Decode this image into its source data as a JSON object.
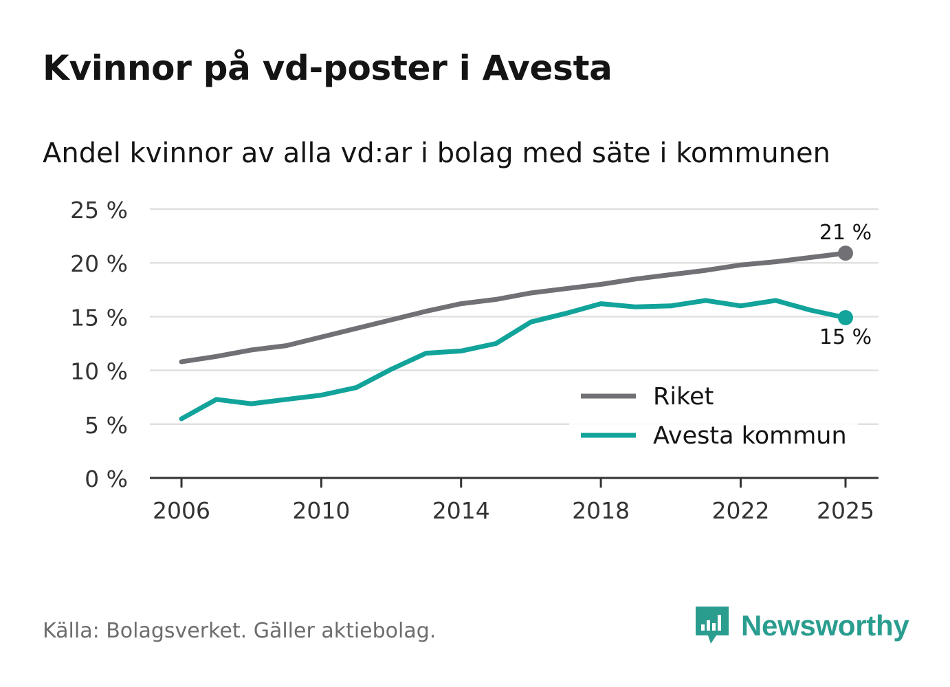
{
  "title": "Kvinnor på vd-poster i Avesta",
  "subtitle": "Andel kvinnor av alla vd:ar i bolag med säte i kommunen",
  "footer": "Källa: Bolagsverket. Gäller aktiebolag.",
  "brand": "Newsworthy",
  "colors": {
    "riket": "#717075",
    "avesta": "#12a39a",
    "grid": "#e0e0e0",
    "axis": "#333333",
    "brand": "#2a9d8f"
  },
  "chart_data": {
    "type": "line",
    "x": [
      2006,
      2007,
      2008,
      2009,
      2010,
      2011,
      2012,
      2013,
      2014,
      2015,
      2016,
      2017,
      2018,
      2019,
      2020,
      2021,
      2022,
      2023,
      2024,
      2025
    ],
    "series": [
      {
        "name": "Riket",
        "color": "#717075",
        "values": [
          10.8,
          11.3,
          11.9,
          12.3,
          13.1,
          13.9,
          14.7,
          15.5,
          16.2,
          16.6,
          17.2,
          17.6,
          18.0,
          18.5,
          18.9,
          19.3,
          19.8,
          20.1,
          20.5,
          20.9
        ]
      },
      {
        "name": "Avesta kommun",
        "color": "#12a39a",
        "values": [
          5.5,
          7.3,
          6.9,
          7.3,
          7.7,
          8.4,
          10.1,
          11.6,
          11.8,
          12.5,
          14.5,
          15.3,
          16.2,
          15.9,
          16.0,
          16.5,
          16.0,
          16.5,
          15.6,
          14.9
        ]
      }
    ],
    "yticks": [
      0,
      5,
      10,
      15,
      20,
      25
    ],
    "ytick_labels": [
      "0 %",
      "5 %",
      "10 %",
      "15 %",
      "20 %",
      "25 %"
    ],
    "xticks": [
      2006,
      2010,
      2014,
      2018,
      2022,
      2025
    ],
    "xtick_labels": [
      "2006",
      "2010",
      "2014",
      "2018",
      "2022",
      "2025"
    ],
    "ylim": [
      0,
      25
    ],
    "end_labels": [
      "21 %",
      "15 %"
    ],
    "legend_position": "bottom-right",
    "xlabel": "",
    "ylabel": ""
  }
}
